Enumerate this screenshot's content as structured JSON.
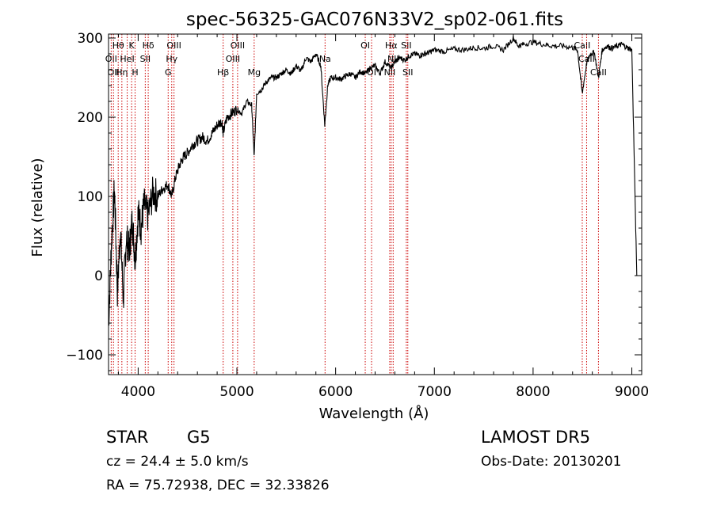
{
  "chart_data": {
    "type": "line",
    "title": "spec-56325-GAC076N33V2_sp02-061.fits",
    "xlabel": "Wavelength (Å)",
    "ylabel": "Flux (relative)",
    "xlim": [
      3700,
      9100
    ],
    "ylim": [
      -125,
      305
    ],
    "xticks": [
      4000,
      5000,
      6000,
      7000,
      8000,
      9000
    ],
    "yticks": [
      -100,
      0,
      100,
      200,
      300
    ],
    "line_color": "#000000",
    "marker_color": "#cc0000",
    "series": [
      {
        "x": [
          3700,
          3730,
          3760,
          3790,
          3820,
          3850,
          3880,
          3910,
          3940,
          3970,
          4000,
          4030,
          4060,
          4100,
          4150,
          4200,
          4250,
          4300,
          4340,
          4380,
          4420,
          4460,
          4500,
          4550,
          4600,
          4650,
          4700,
          4750,
          4800,
          4850,
          4861,
          4900,
          4950,
          5000,
          5050,
          5100,
          5150,
          5175,
          5200,
          5250,
          5300,
          5350,
          5400,
          5450,
          5500,
          5550,
          5600,
          5650,
          5700,
          5750,
          5800,
          5850,
          5890,
          5920,
          5950,
          6000,
          6050,
          6100,
          6150,
          6200,
          6250,
          6300,
          6350,
          6400,
          6450,
          6500,
          6563,
          6600,
          6650,
          6700,
          6750,
          6800,
          6850,
          6900,
          6950,
          7000,
          7100,
          7200,
          7300,
          7400,
          7500,
          7600,
          7700,
          7800,
          7850,
          7900,
          8000,
          8100,
          8200,
          8300,
          8400,
          8450,
          8498,
          8542,
          8580,
          8620,
          8662,
          8700,
          8750,
          8800,
          8850,
          8900,
          8950,
          9000,
          9050
        ],
        "y": [
          -60,
          40,
          110,
          -20,
          60,
          -30,
          50,
          30,
          70,
          20,
          80,
          60,
          90,
          75,
          105,
          100,
          110,
          115,
          100,
          125,
          140,
          150,
          155,
          165,
          170,
          175,
          170,
          180,
          190,
          195,
          180,
          200,
          205,
          210,
          205,
          220,
          215,
          150,
          230,
          235,
          245,
          250,
          250,
          255,
          260,
          255,
          265,
          258,
          275,
          270,
          280,
          265,
          190,
          240,
          250,
          250,
          248,
          252,
          255,
          250,
          258,
          255,
          262,
          265,
          255,
          270,
          262,
          270,
          275,
          272,
          278,
          280,
          278,
          280,
          282,
          285,
          283,
          286,
          285,
          288,
          287,
          290,
          285,
          300,
          290,
          292,
          295,
          292,
          290,
          290,
          288,
          285,
          230,
          268,
          280,
          282,
          250,
          285,
          290,
          287,
          290,
          292,
          288,
          285,
          0
        ]
      }
    ],
    "lines": [
      {
        "wavelength": 3727,
        "label": "OII",
        "tier": 1
      },
      {
        "wavelength": 3750,
        "label": "OII",
        "tier": 2
      },
      {
        "wavelength": 3798,
        "label": "Hθ",
        "tier": 0
      },
      {
        "wavelength": 3835,
        "label": "Hη",
        "tier": 2
      },
      {
        "wavelength": 3889,
        "label": "HeI",
        "tier": 1
      },
      {
        "wavelength": 3934,
        "label": "K",
        "tier": 0
      },
      {
        "wavelength": 3969,
        "label": "H",
        "tier": 2
      },
      {
        "wavelength": 4072,
        "label": "SII",
        "tier": 1
      },
      {
        "wavelength": 4102,
        "label": "Hδ",
        "tier": 0
      },
      {
        "wavelength": 4304,
        "label": "G",
        "tier": 2
      },
      {
        "wavelength": 4340,
        "label": "Hγ",
        "tier": 1
      },
      {
        "wavelength": 4363,
        "label": "OIII",
        "tier": 0
      },
      {
        "wavelength": 4861,
        "label": "Hβ",
        "tier": 2
      },
      {
        "wavelength": 4959,
        "label": "OIII",
        "tier": 1
      },
      {
        "wavelength": 5007,
        "label": "OIII",
        "tier": 0
      },
      {
        "wavelength": 5175,
        "label": "Mg",
        "tier": 2
      },
      {
        "wavelength": 5893,
        "label": "Na",
        "tier": 1
      },
      {
        "wavelength": 6300,
        "label": "OI",
        "tier": 0
      },
      {
        "wavelength": 6364,
        "label": "OI",
        "tier": 2
      },
      {
        "wavelength": 6548,
        "label": "NII",
        "tier": 2
      },
      {
        "wavelength": 6563,
        "label": "Hα",
        "tier": 0
      },
      {
        "wavelength": 6583,
        "label": "NII",
        "tier": 1
      },
      {
        "wavelength": 6716,
        "label": "SII",
        "tier": 0
      },
      {
        "wavelength": 6731,
        "label": "SII",
        "tier": 2
      },
      {
        "wavelength": 8498,
        "label": "CaII",
        "tier": 0
      },
      {
        "wavelength": 8542,
        "label": "CaII",
        "tier": 1
      },
      {
        "wavelength": 8662,
        "label": "CaII",
        "tier": 2
      }
    ]
  },
  "info": {
    "object_class": "STAR",
    "subclass": "G5",
    "survey": "LAMOST DR5",
    "cz": "cz = 24.4 ± 5.0 km/s",
    "obs_date": "Obs-Date: 20130201",
    "coords": "RA =  75.72938, DEC =  32.33826"
  }
}
